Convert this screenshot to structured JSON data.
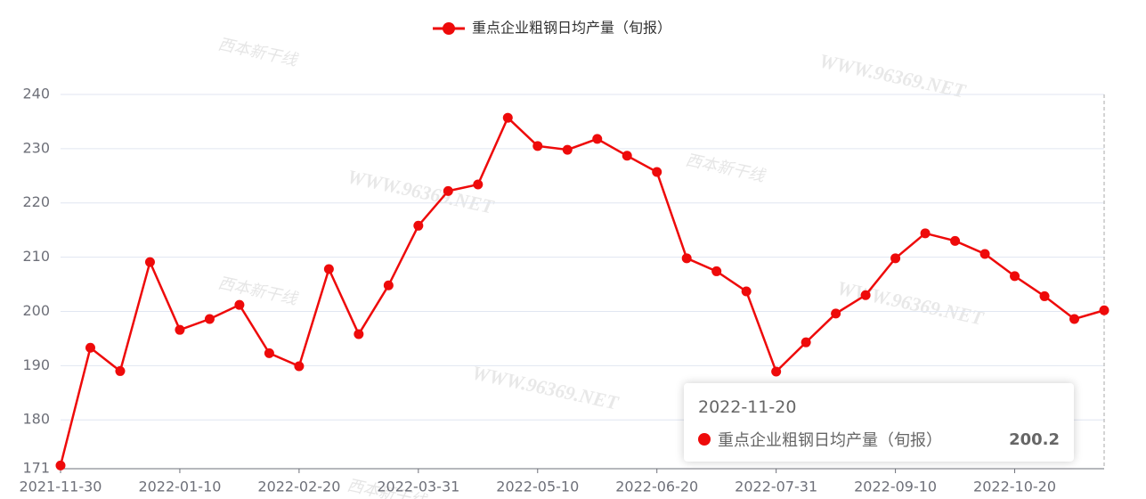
{
  "chart_data": {
    "type": "line",
    "categories": [
      "2021-11-30",
      null,
      null,
      null,
      "2022-01-10",
      null,
      null,
      null,
      "2022-02-20",
      null,
      null,
      null,
      "2022-03-31",
      null,
      null,
      null,
      "2022-05-10",
      null,
      null,
      null,
      "2022-06-20",
      null,
      null,
      null,
      "2022-07-31",
      null,
      null,
      null,
      "2022-09-10",
      null,
      null,
      null,
      "2022-10-20",
      null,
      null,
      "2022-11-20"
    ],
    "series": [
      {
        "name": "重点企业粗钢日均产量（旬报）",
        "color": "#ee0a0a",
        "values": [
          171.6,
          193.3,
          189.0,
          209.1,
          196.6,
          198.6,
          201.2,
          192.3,
          189.9,
          207.8,
          195.8,
          204.8,
          215.8,
          222.2,
          223.4,
          235.7,
          230.5,
          229.8,
          231.8,
          228.7,
          225.7,
          209.8,
          207.4,
          203.7,
          188.9,
          194.3,
          199.6,
          203.0,
          209.8,
          214.4,
          213.0,
          210.6,
          206.5,
          202.8,
          198.6,
          200.2
        ]
      }
    ],
    "ylim": [
      171,
      240
    ],
    "yticks": [
      171,
      180,
      190,
      200,
      210,
      220,
      230,
      240
    ],
    "grid": true,
    "legend": "top",
    "tooltip_index": 35,
    "watermark": "WWW.96369.NET",
    "watermark_logo": "西本新干线"
  }
}
